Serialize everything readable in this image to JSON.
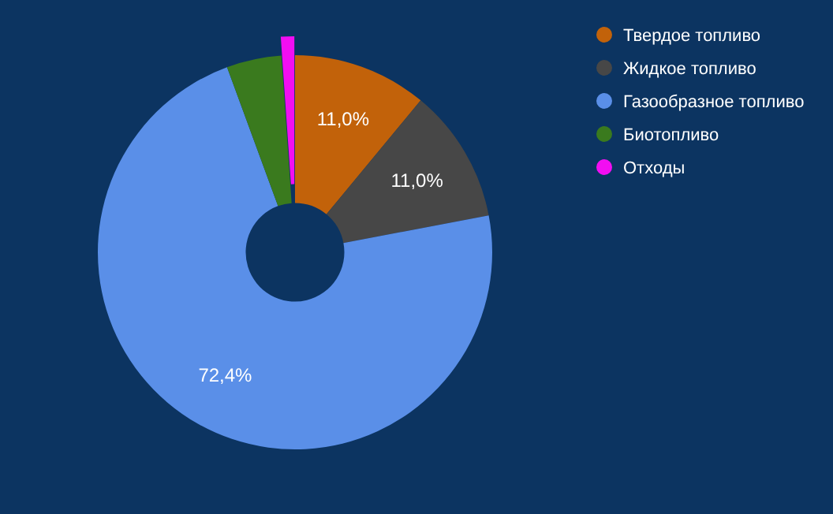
{
  "chart_data": {
    "type": "donut",
    "categories": [
      "Твердое топливо",
      "Жидкое топливо",
      "Газообразное топливо",
      "Биотопливо",
      "Отходы"
    ],
    "values": [
      11.0,
      11.0,
      72.4,
      4.5,
      1.1
    ],
    "colors": [
      "#c2620a",
      "#474747",
      "#5a8fe8",
      "#3a7a1e",
      "#f20ef2"
    ],
    "value_labels": [
      "11,0%",
      "11,0%",
      "72,4%",
      null,
      null
    ],
    "legend": "top right"
  }
}
